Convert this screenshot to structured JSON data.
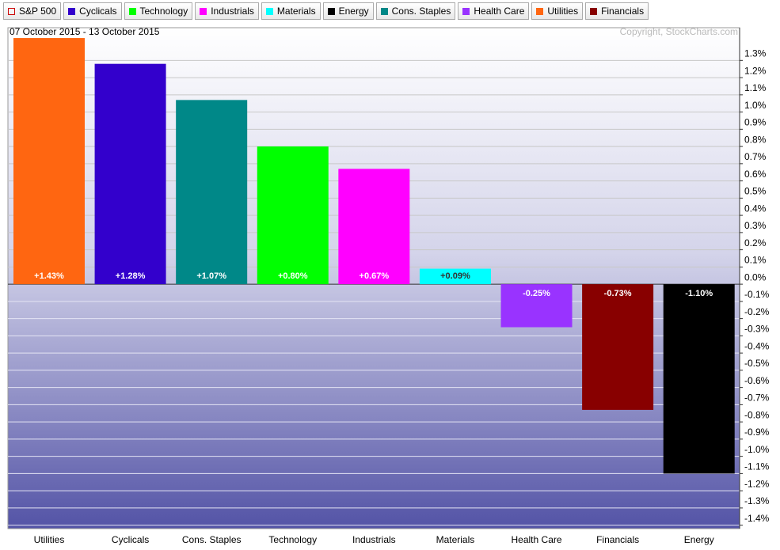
{
  "chart_data": {
    "type": "bar",
    "subtitle": "07 October 2015 - 13 October 2015",
    "copyright": "Copyright, StockCharts.com",
    "legend": [
      {
        "name": "S&P 500",
        "color": "#cc0000",
        "outline": true
      },
      {
        "name": "Cyclicals",
        "color": "#3300cc"
      },
      {
        "name": "Technology",
        "color": "#00ff00"
      },
      {
        "name": "Industrials",
        "color": "#ff00ff"
      },
      {
        "name": "Materials",
        "color": "#00ffff"
      },
      {
        "name": "Energy",
        "color": "#000000"
      },
      {
        "name": "Cons. Staples",
        "color": "#008888"
      },
      {
        "name": "Health Care",
        "color": "#9933ff"
      },
      {
        "name": "Utilities",
        "color": "#ff6611"
      },
      {
        "name": "Financials",
        "color": "#880000"
      }
    ],
    "categories": [
      "Utilities",
      "Cyclicals",
      "Cons. Staples",
      "Technology",
      "Industrials",
      "Materials",
      "Health Care",
      "Financials",
      "Energy"
    ],
    "values": [
      1.43,
      1.28,
      1.07,
      0.8,
      0.67,
      0.09,
      -0.25,
      -0.73,
      -1.1
    ],
    "value_labels": [
      "+1.43%",
      "+1.28%",
      "+1.07%",
      "+0.80%",
      "+0.67%",
      "+0.09%",
      "-0.25%",
      "-0.73%",
      "-1.10%"
    ],
    "colors": [
      "#ff6611",
      "#3300cc",
      "#008888",
      "#00ff00",
      "#ff00ff",
      "#00ffff",
      "#9933ff",
      "#880000",
      "#000000"
    ],
    "ylim": [
      -1.42,
      1.49
    ],
    "yticks": [
      {
        "value": 1.3,
        "label": "1.3%"
      },
      {
        "value": 1.2,
        "label": "1.2%"
      },
      {
        "value": 1.1,
        "label": "1.1%"
      },
      {
        "value": 1.0,
        "label": "1.0%"
      },
      {
        "value": 0.9,
        "label": "0.9%"
      },
      {
        "value": 0.8,
        "label": "0.8%"
      },
      {
        "value": 0.7,
        "label": "0.7%"
      },
      {
        "value": 0.6,
        "label": "0.6%"
      },
      {
        "value": 0.5,
        "label": "0.5%"
      },
      {
        "value": 0.4,
        "label": "0.4%"
      },
      {
        "value": 0.3,
        "label": "0.3%"
      },
      {
        "value": 0.2,
        "label": "0.2%"
      },
      {
        "value": 0.1,
        "label": "0.1%"
      },
      {
        "value": 0,
        "label": "0.0%"
      },
      {
        "value": -0.1,
        "label": "-0.1%"
      },
      {
        "value": -0.2,
        "label": "-0.2%"
      },
      {
        "value": -0.3,
        "label": "-0.3%"
      },
      {
        "value": -0.4,
        "label": "-0.4%"
      },
      {
        "value": -0.5,
        "label": "-0.5%"
      },
      {
        "value": -0.6,
        "label": "-0.6%"
      },
      {
        "value": -0.7,
        "label": "-0.7%"
      },
      {
        "value": -0.8,
        "label": "-0.8%"
      },
      {
        "value": -0.9,
        "label": "-0.9%"
      },
      {
        "value": -1.0,
        "label": "-1.0%"
      },
      {
        "value": -1.1,
        "label": "-1.1%"
      },
      {
        "value": -1.2,
        "label": "-1.2%"
      },
      {
        "value": -1.3,
        "label": "-1.3%"
      },
      {
        "value": -1.4,
        "label": "-1.4%"
      }
    ],
    "grid": true
  }
}
